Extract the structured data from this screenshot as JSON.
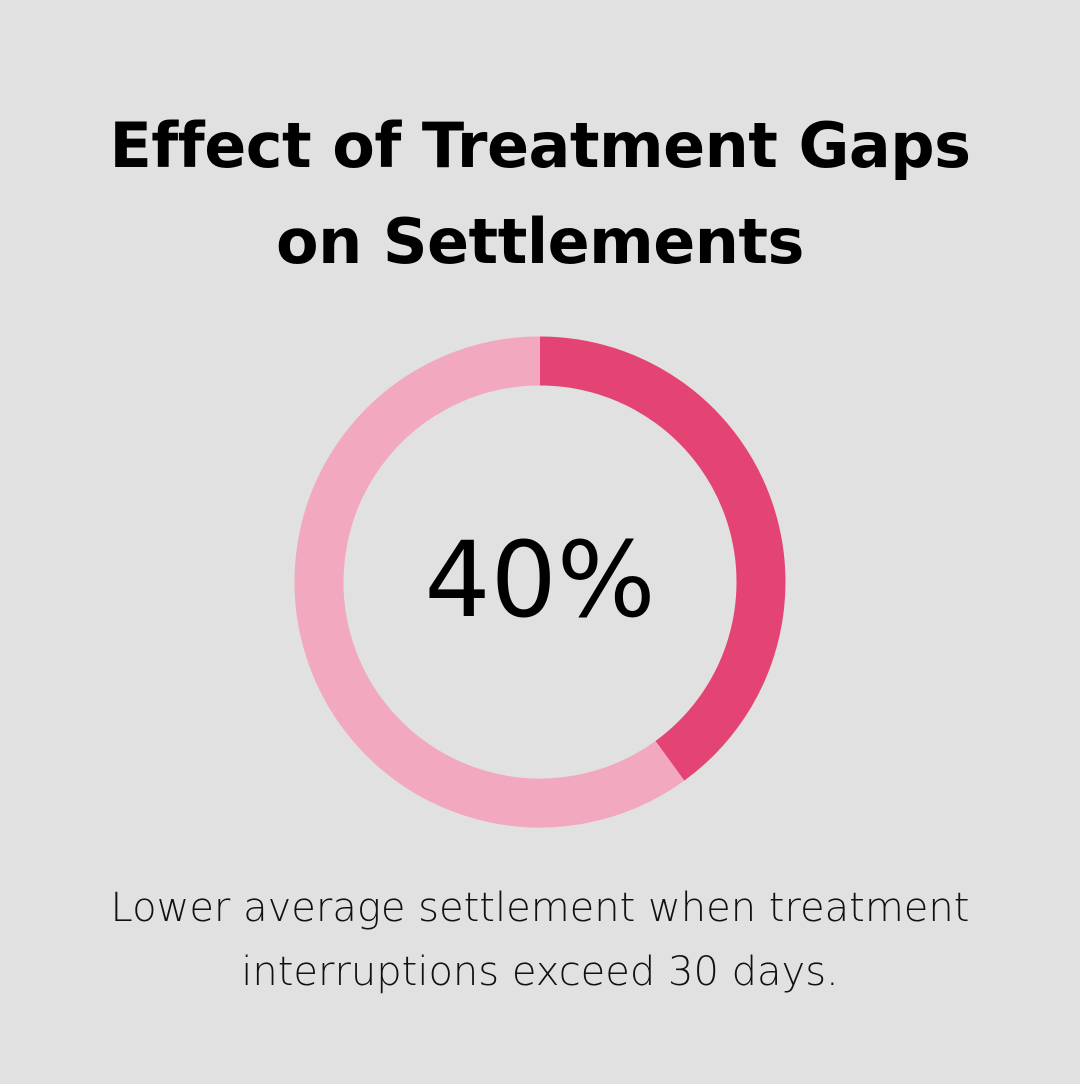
{
  "title": {
    "line1": "Effect of Treatment Gaps",
    "line2": "on Settlements"
  },
  "caption": {
    "line1": "Lower average settlement when treatment",
    "line2": "interruptions exceed 30 days."
  },
  "colors": {
    "background": "#e0e1e0",
    "highlight": "#e34474",
    "remainder": "#f2a8bf"
  },
  "chart_data": {
    "type": "pie",
    "value_label": "40%",
    "values": [
      40,
      60
    ],
    "donut": true
  }
}
